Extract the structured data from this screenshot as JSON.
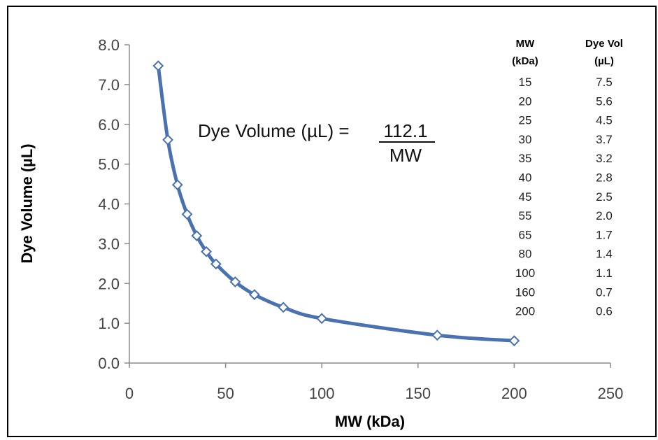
{
  "chart_data": {
    "type": "line",
    "xlabel": "MW (kDa)",
    "ylabel": "Dye Volume (µL)",
    "xlim": [
      0,
      250
    ],
    "ylim": [
      0,
      8
    ],
    "x_ticks": [
      "0",
      "50",
      "100",
      "150",
      "200",
      "250"
    ],
    "y_ticks": [
      "0.0",
      "1.0",
      "2.0",
      "3.0",
      "4.0",
      "5.0",
      "6.0",
      "7.0",
      "8.0"
    ],
    "grid": false,
    "series": [
      {
        "x": [
          15,
          20,
          25,
          30,
          35,
          40,
          45,
          55,
          65,
          80,
          100,
          160,
          200
        ],
        "values": [
          7.47,
          5.61,
          4.48,
          3.74,
          3.2,
          2.8,
          2.49,
          2.04,
          1.72,
          1.4,
          1.12,
          0.7,
          0.56
        ],
        "color": "#4a72b0",
        "marker": "diamond-open"
      }
    ],
    "annotation": {
      "lhs": "Dye Volume (µL) =",
      "numerator": "112.1",
      "denominator": "MW"
    },
    "table": {
      "headers": [
        [
          "MW",
          "(kDa)"
        ],
        [
          "Dye Vol",
          "(µL)"
        ]
      ],
      "rows": [
        [
          "15",
          "7.5"
        ],
        [
          "20",
          "5.6"
        ],
        [
          "25",
          "4.5"
        ],
        [
          "30",
          "3.7"
        ],
        [
          "35",
          "3.2"
        ],
        [
          "40",
          "2.8"
        ],
        [
          "45",
          "2.5"
        ],
        [
          "55",
          "2.0"
        ],
        [
          "65",
          "1.7"
        ],
        [
          "80",
          "1.4"
        ],
        [
          "100",
          "1.1"
        ],
        [
          "160",
          "0.7"
        ],
        [
          "200",
          "0.6"
        ]
      ]
    }
  }
}
